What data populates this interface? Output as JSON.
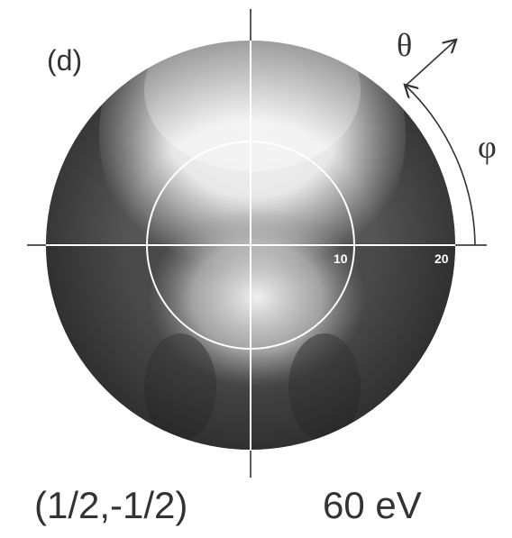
{
  "panel": {
    "label": "(d)",
    "theta_label": "θ",
    "phi_label": "φ",
    "ring_labels": [
      "10",
      "20"
    ],
    "beam": "(1/2,-1/2)",
    "energy": "60 eV"
  }
}
